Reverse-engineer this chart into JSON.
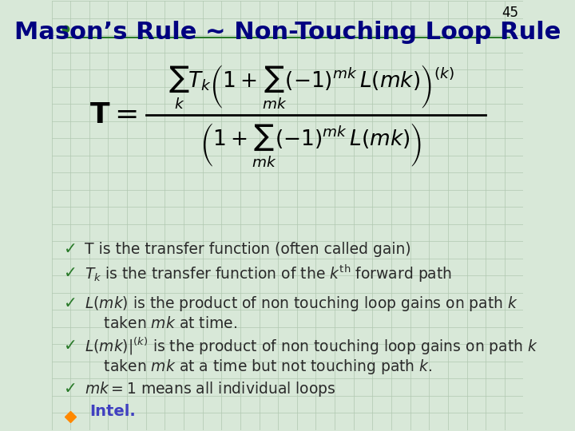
{
  "title": "Mason’s Rule ~ Non-Touching Loop Rule",
  "page_number": "45",
  "background_color": "#d8e8d8",
  "grid_color": "#b0c8b0",
  "title_color": "#000080",
  "title_fontsize": 22,
  "formula_color": "#000000",
  "bullet_color": "#2a2a2a",
  "checkmark_color": "#2a7a2a",
  "bullet_fontsize": 13.5,
  "bullet_lines": [
    "T is the transfer function (often called gain)",
    "$T_k$ is the transfer function of the $k^{\\mathrm{th}}$ forward path",
    "$L(mk)$ is the product of non touching loop gains on path $k$\n    taken $mk$ at time.",
    "$L(mk)|^{(k)}$ is the product of non touching loop gains on path $k$\n    taken $mk$ at a time but not touching path $k$.",
    "$mk=1$ means all individual loops"
  ]
}
